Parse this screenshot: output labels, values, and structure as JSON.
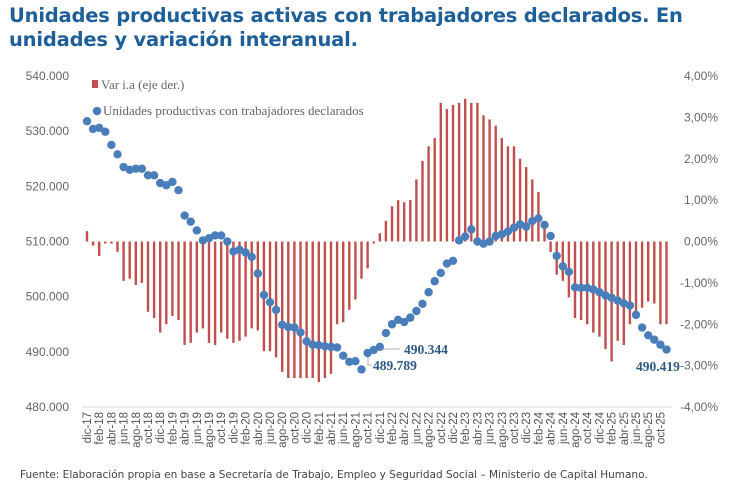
{
  "title": "Unidades productivas activas con trabajadores declarados. En unidades y variación interanual.",
  "footnote": "Fuente: Elaboración propia en base a Secretaría de Trabajo, Empleo y Seguridad Social – Ministerio de Capital Humano.",
  "chart_data": {
    "type": "bar+scatter",
    "title": "Unidades productivas activas con trabajadores declarados. En unidades y variación interanual.",
    "x": [
      "dic-17",
      "ene-18",
      "feb-18",
      "mar-18",
      "abr-18",
      "may-18",
      "jun-18",
      "jul-18",
      "ago-18",
      "sep-18",
      "oct-18",
      "nov-18",
      "dic-18",
      "ene-19",
      "feb-19",
      "mar-19",
      "abr-19",
      "may-19",
      "jun-19",
      "jul-19",
      "ago-19",
      "sep-19",
      "oct-19",
      "nov-19",
      "dic-19",
      "ene-20",
      "feb-20",
      "mar-20",
      "abr-20",
      "may-20",
      "jun-20",
      "jul-20",
      "ago-20",
      "sep-20",
      "oct-20",
      "nov-20",
      "dic-20",
      "ene-21",
      "feb-21",
      "mar-21",
      "abr-21",
      "may-21",
      "jun-21",
      "jul-21",
      "ago-21",
      "sep-21",
      "oct-21",
      "nov-21",
      "dic-21",
      "ene-22",
      "feb-22",
      "mar-22",
      "abr-22",
      "may-22",
      "jun-22",
      "jul-22",
      "ago-22",
      "sep-22",
      "oct-22",
      "nov-22",
      "dic-22",
      "ene-23",
      "feb-23",
      "mar-23",
      "abr-23",
      "may-23",
      "jun-23",
      "jul-23",
      "ago-23",
      "sep-23",
      "oct-23",
      "nov-23",
      "dic-23",
      "ene-24",
      "feb-24",
      "mar-24",
      "abr-24",
      "may-24",
      "jun-24",
      "jul-24",
      "ago-24",
      "sep-24",
      "oct-24",
      "nov-24",
      "dic-24",
      "ene-25",
      "feb-25",
      "mar-25",
      "abr-25",
      "may-25",
      "jun-25",
      "jul-25",
      "ago-25",
      "sep-25",
      "oct-25",
      "nov-25"
    ],
    "x_tick_labels": [
      "dic-17",
      "feb-18",
      "abr-18",
      "jun-18",
      "ago-18",
      "oct-18",
      "dic-18",
      "feb-19",
      "abr-19",
      "jun-19",
      "ago-19",
      "oct-19",
      "dic-19",
      "feb-20",
      "abr-20",
      "jun-20",
      "ago-20",
      "oct-20",
      "dic-20",
      "feb-21",
      "abr-21",
      "jun-21",
      "ago-21",
      "oct-21",
      "dic-21",
      "feb-22",
      "abr-22",
      "jun-22",
      "ago-22",
      "oct-22",
      "dic-22",
      "feb-23",
      "abr-23",
      "jun-23",
      "ago-23",
      "oct-23",
      "dic-23",
      "feb-24",
      "abr-24",
      "jun-24",
      "ago-24",
      "oct-24",
      "dic-24",
      "feb-25",
      "abr-25",
      "jun-25",
      "ago-25",
      "oct-25"
    ],
    "series": [
      {
        "name": "Var i.a (eje der.)",
        "kind": "bar",
        "axis": "right",
        "color": "#c0504d",
        "values": [
          0.25,
          -0.1,
          -0.35,
          -0.05,
          -0.05,
          -0.25,
          -0.95,
          -0.9,
          -1.05,
          -1.0,
          -1.7,
          -1.85,
          -2.2,
          -2.0,
          -1.8,
          -1.9,
          -2.5,
          -2.45,
          -2.2,
          -2.1,
          -2.45,
          -2.5,
          -2.2,
          -2.35,
          -2.45,
          -2.4,
          -2.3,
          -2.1,
          -2.15,
          -2.65,
          -2.65,
          -2.8,
          -3.15,
          -3.3,
          -3.3,
          -3.3,
          -3.3,
          -3.3,
          -3.4,
          -3.3,
          -3.2,
          -2.0,
          -1.95,
          -1.65,
          -1.4,
          -0.9,
          -0.65,
          -0.05,
          0.2,
          0.5,
          0.85,
          1.0,
          0.95,
          1.0,
          1.5,
          1.95,
          2.3,
          2.5,
          3.35,
          3.2,
          3.3,
          3.35,
          3.45,
          3.35,
          3.35,
          3.05,
          2.95,
          2.8,
          2.5,
          2.3,
          2.3,
          2.0,
          1.8,
          1.5,
          1.2,
          0.4,
          -0.25,
          -0.8,
          -0.95,
          -1.35,
          -1.85,
          -1.9,
          -2.0,
          -2.2,
          -2.3,
          -2.6,
          -2.9,
          -2.4,
          -2.5,
          -2.0,
          -1.7,
          -1.6,
          -1.45,
          -1.5,
          -2.0,
          -2.0
        ]
      },
      {
        "name": "Unidades productivas con trabajadores declarados",
        "kind": "scatter",
        "axis": "left",
        "color": "#4a7ebb",
        "values": [
          531800,
          530400,
          530600,
          529900,
          527500,
          525800,
          523500,
          523000,
          523200,
          523200,
          522000,
          522000,
          520600,
          520200,
          520800,
          519300,
          514700,
          513600,
          512000,
          510200,
          510600,
          511100,
          511100,
          510000,
          508200,
          508500,
          508000,
          507200,
          504200,
          500300,
          499000,
          497600,
          494900,
          494500,
          494400,
          493500,
          491900,
          491300,
          491200,
          491000,
          490900,
          490800,
          489300,
          488200,
          488300,
          486800,
          489789,
          490344,
          490900,
          493400,
          495000,
          495800,
          495400,
          496200,
          497400,
          498700,
          500800,
          502800,
          504300,
          506000,
          506500,
          510200,
          510900,
          512200,
          510000,
          509600,
          510000,
          511000,
          511300,
          511800,
          512500,
          513100,
          512700,
          513700,
          514200,
          513000,
          511000,
          507400,
          505500,
          504500,
          501700,
          501600,
          501600,
          501300,
          500800,
          500200,
          499800,
          499300,
          498800,
          498400,
          496700,
          494400,
          493000,
          492200,
          491300,
          490419
        ]
      }
    ],
    "left_axis": {
      "range": [
        480000,
        540000
      ],
      "ticks": [
        "480.000",
        "490.000",
        "500.000",
        "510.000",
        "520.000",
        "530.000",
        "540.000"
      ]
    },
    "right_axis": {
      "range": [
        -4,
        4
      ],
      "ticks": [
        "-4,00%",
        "-3,00%",
        "-2,00%",
        "-1,00%",
        "0,00%",
        "1,00%",
        "2,00%",
        "3,00%",
        "4,00%"
      ]
    },
    "annotations": [
      {
        "x": "oct-21",
        "label": "489.789"
      },
      {
        "x": "nov-21",
        "label": "490.344"
      },
      {
        "x": "nov-25",
        "label": "490.419"
      }
    ],
    "legend": {
      "placement": "top-left",
      "entries": [
        "Var i.a (eje der.)",
        "Unidades productivas con trabajadores declarados"
      ]
    },
    "grid": false
  }
}
